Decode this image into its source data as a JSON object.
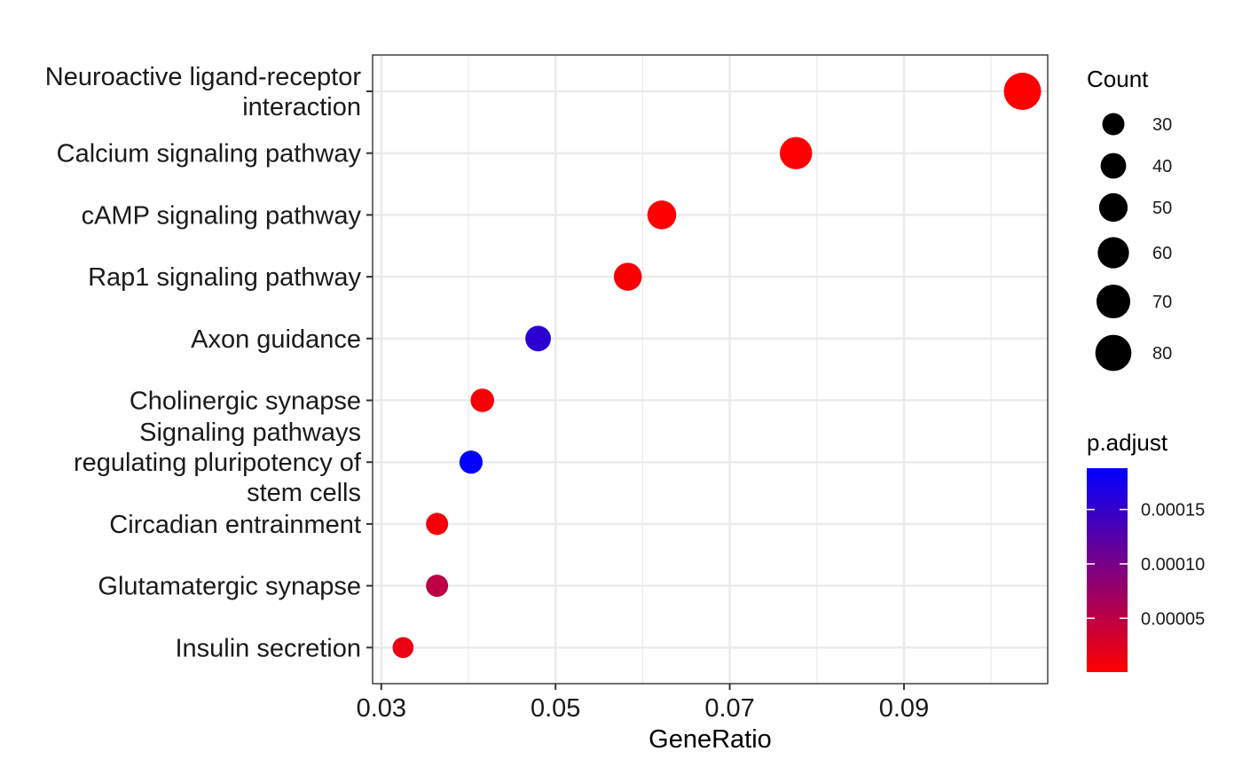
{
  "chart_data": {
    "type": "scatter",
    "title": "",
    "xlabel": "GeneRatio",
    "ylabel": "",
    "xlim": [
      0.029,
      0.1065
    ],
    "xticks": [
      0.03,
      0.05,
      0.07,
      0.09
    ],
    "xtick_labels": [
      "0.03",
      "0.05",
      "0.07",
      "0.09"
    ],
    "grid": true,
    "legend_placement": "right",
    "categories": [
      [
        "Neuroactive ligand-receptor",
        "interaction"
      ],
      [
        "Calcium signaling pathway"
      ],
      [
        "cAMP signaling pathway"
      ],
      [
        "Rap1 signaling pathway"
      ],
      [
        "Axon guidance"
      ],
      [
        "Cholinergic synapse"
      ],
      [
        "Signaling pathways",
        "regulating pluripotency of",
        "stem cells"
      ],
      [
        "Circadian entrainment"
      ],
      [
        "Glutamatergic synapse"
      ],
      [
        "Insulin secretion"
      ]
    ],
    "points": [
      {
        "gene_ratio": 0.1036,
        "count": 85,
        "p_adjust": 5e-07
      },
      {
        "gene_ratio": 0.0776,
        "count": 64,
        "p_adjust": 1e-06
      },
      {
        "gene_ratio": 0.0622,
        "count": 51,
        "p_adjust": 2e-06
      },
      {
        "gene_ratio": 0.0583,
        "count": 48,
        "p_adjust": 4e-06
      },
      {
        "gene_ratio": 0.048,
        "count": 40,
        "p_adjust": 0.000155
      },
      {
        "gene_ratio": 0.0416,
        "count": 34,
        "p_adjust": 6e-06
      },
      {
        "gene_ratio": 0.0403,
        "count": 33,
        "p_adjust": 0.000185
      },
      {
        "gene_ratio": 0.0364,
        "count": 30,
        "p_adjust": 8e-06
      },
      {
        "gene_ratio": 0.0364,
        "count": 30,
        "p_adjust": 5e-05
      },
      {
        "gene_ratio": 0.0325,
        "count": 27,
        "p_adjust": 1.5e-05
      }
    ],
    "size_legend": {
      "title": "Count",
      "values": [
        30,
        40,
        50,
        60,
        70,
        80
      ],
      "labels": [
        "30",
        "40",
        "50",
        "60",
        "70",
        "80"
      ]
    },
    "color_legend": {
      "title": "p.adjust",
      "min": 5e-07,
      "max": 0.000188,
      "low_color": "#ff0000",
      "high_color": "#0000ff",
      "ticks": [
        5e-05,
        0.0001,
        0.00015
      ],
      "tick_labels": [
        "0.00005",
        "0.00010",
        "0.00015"
      ]
    },
    "colors": {
      "panel_border": "#333333",
      "grid": "#ebebeb",
      "point_low": "#ff0000",
      "point_high": "#0000ff"
    }
  }
}
